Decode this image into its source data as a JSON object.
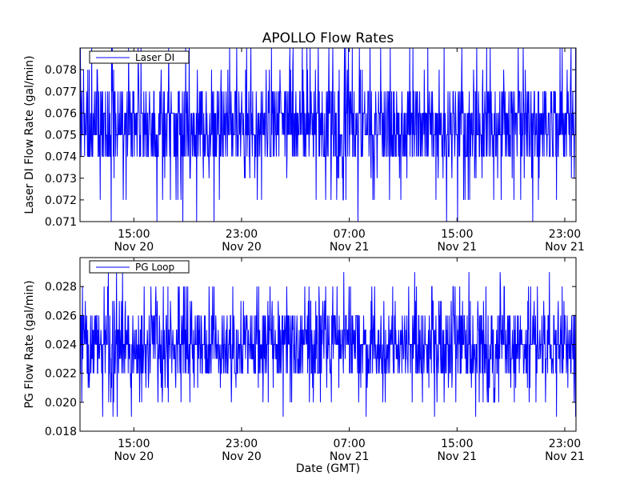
{
  "figure": {
    "title": "APOLLO Flow Rates",
    "xlabel": "Date (GMT)"
  },
  "chart_data": [
    {
      "type": "line",
      "name": "laser-di",
      "ylabel": "Laser DI Flow Rate (gal/min)",
      "ylim": [
        0.071,
        0.079
      ],
      "yticks": [
        "0.071",
        "0.072",
        "0.073",
        "0.074",
        "0.075",
        "0.076",
        "0.077",
        "0.078"
      ],
      "xlim": [
        "2014-11-20 11:00",
        "2014-11-21 23:50"
      ],
      "xticks": [
        {
          "t": "2014-11-20 15:00",
          "time": "15:00",
          "date": "Nov 20"
        },
        {
          "t": "2014-11-20 23:00",
          "time": "23:00",
          "date": "Nov 20"
        },
        {
          "t": "2014-11-21 07:00",
          "time": "07:00",
          "date": "Nov 21"
        },
        {
          "t": "2014-11-21 15:00",
          "time": "15:00",
          "date": "Nov 21"
        },
        {
          "t": "2014-11-21 23:00",
          "time": "23:00",
          "date": "Nov 21"
        }
      ],
      "legend": {
        "label": "Laser DI",
        "placement": "top-left"
      },
      "color": "#0000ff",
      "series": [
        {
          "name": "Laser DI",
          "typical_range": [
            0.075,
            0.076
          ],
          "observed_min": 0.071,
          "observed_max": 0.079
        }
      ]
    },
    {
      "type": "line",
      "name": "pg-loop",
      "ylabel": "PG Flow Rate (gal/min)",
      "ylim": [
        0.018,
        0.03
      ],
      "yticks": [
        "0.018",
        "0.020",
        "0.022",
        "0.024",
        "0.026",
        "0.028"
      ],
      "xlim": [
        "2014-11-20 11:00",
        "2014-11-21 23:50"
      ],
      "xticks": [
        {
          "t": "2014-11-20 15:00",
          "time": "15:00",
          "date": "Nov 20"
        },
        {
          "t": "2014-11-20 23:00",
          "time": "23:00",
          "date": "Nov 20"
        },
        {
          "t": "2014-11-21 07:00",
          "time": "07:00",
          "date": "Nov 21"
        },
        {
          "t": "2014-11-21 15:00",
          "time": "15:00",
          "date": "Nov 21"
        },
        {
          "t": "2014-11-21 23:00",
          "time": "23:00",
          "date": "Nov 21"
        }
      ],
      "legend": {
        "label": "PG Loop",
        "placement": "top-left"
      },
      "color": "#0000ff",
      "series": [
        {
          "name": "PG Loop",
          "typical_range": [
            0.023,
            0.025
          ],
          "observed_min": 0.019,
          "observed_max": 0.029
        }
      ]
    }
  ]
}
